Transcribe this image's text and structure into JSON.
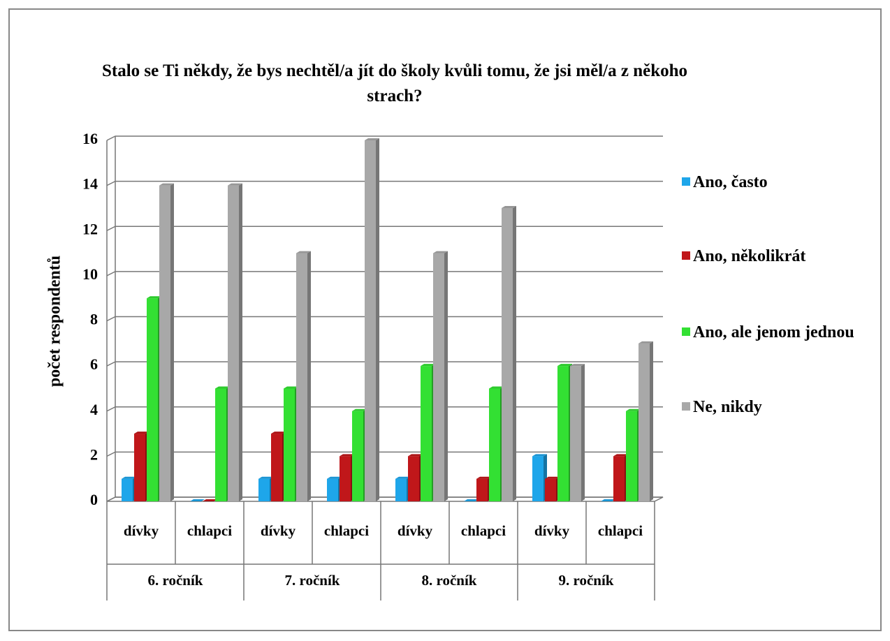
{
  "chart_data": {
    "type": "bar3d",
    "title": "Stalo se Ti někdy, že bys nechtěl/a jít do školy kvůli tomu, že jsi měl/a z někoho strach?",
    "ylabel": "počet respondentů",
    "categories": [
      "dívky",
      "chlapci",
      "dívky",
      "chlapci",
      "dívky",
      "chlapci",
      "dívky",
      "chlapci"
    ],
    "group_labels": [
      "6. ročník",
      "7. ročník",
      "8. ročník",
      "9. ročník"
    ],
    "series": [
      {
        "name": "Ano, často",
        "color": "#1ea6ea",
        "values": [
          1,
          0,
          1,
          1,
          1,
          0,
          2,
          0
        ]
      },
      {
        "name": "Ano, několikrát",
        "color": "#c0171a",
        "values": [
          3,
          0,
          3,
          2,
          2,
          1,
          1,
          2
        ]
      },
      {
        "name": "Ano, ale jenom jednou",
        "color": "#33e033",
        "values": [
          9,
          5,
          5,
          4,
          6,
          5,
          6,
          4
        ]
      },
      {
        "name": "Ne, nikdy",
        "color": "#a8a8a8",
        "values": [
          14,
          14,
          11,
          16,
          11,
          13,
          6,
          7
        ]
      }
    ],
    "ylim": [
      0,
      16
    ],
    "yticks": [
      0,
      2,
      4,
      6,
      8,
      10,
      12,
      14,
      16
    ],
    "grid": true,
    "legend": "right"
  }
}
